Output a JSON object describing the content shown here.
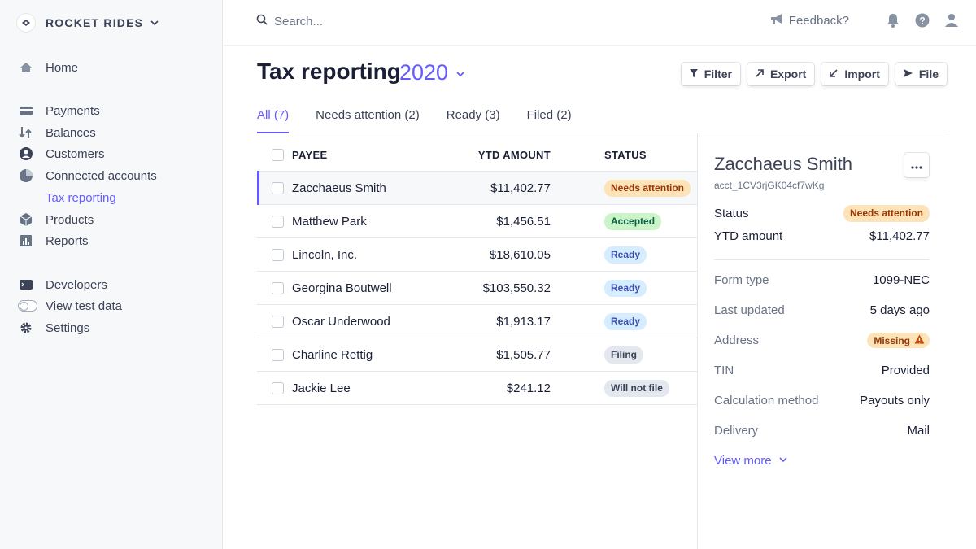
{
  "brand": {
    "name": "ROCKET RIDES"
  },
  "sidebar": {
    "items": [
      {
        "label": "Home",
        "icon": "home-icon"
      },
      {
        "label": "Payments",
        "icon": "payments-icon"
      },
      {
        "label": "Balances",
        "icon": "balances-icon"
      },
      {
        "label": "Customers",
        "icon": "customers-icon"
      },
      {
        "label": "Connected accounts",
        "icon": "connected-accounts-icon"
      },
      {
        "label": "Tax reporting"
      },
      {
        "label": "Products",
        "icon": "products-icon"
      },
      {
        "label": "Reports",
        "icon": "reports-icon"
      },
      {
        "label": "Developers",
        "icon": "developers-icon"
      },
      {
        "label": "View test data",
        "icon": "toggle-icon"
      },
      {
        "label": "Settings",
        "icon": "gear-icon"
      }
    ]
  },
  "topbar": {
    "search_placeholder": "Search...",
    "feedback_label": "Feedback?"
  },
  "header": {
    "title": "Tax reporting",
    "year": "2020",
    "actions": [
      "Filter",
      "Export",
      "Import",
      "File"
    ]
  },
  "tabs": [
    "All (7)",
    "Needs attention (2)",
    "Ready (3)",
    "Filed (2)"
  ],
  "table": {
    "columns": [
      "PAYEE",
      "YTD AMOUNT",
      "STATUS"
    ],
    "rows": [
      {
        "payee": "Zacchaeus Smith",
        "amount": "$11,402.77",
        "status": "Needs attention"
      },
      {
        "payee": "Matthew Park",
        "amount": "$1,456.51",
        "status": "Accepted"
      },
      {
        "payee": "Lincoln, Inc.",
        "amount": "$18,610.05",
        "status": "Ready"
      },
      {
        "payee": "Georgina Boutwell",
        "amount": "$103,550.32",
        "status": "Ready"
      },
      {
        "payee": "Oscar Underwood",
        "amount": "$1,913.17",
        "status": "Ready"
      },
      {
        "payee": "Charline Rettig",
        "amount": "$1,505.77",
        "status": "Filing"
      },
      {
        "payee": "Jackie Lee",
        "amount": "$241.12",
        "status": "Will not file"
      }
    ]
  },
  "detail": {
    "name": "Zacchaeus Smith",
    "account_id": "acct_1CV3rjGK04cf7wKg",
    "status_label": "Status",
    "status": "Needs attention",
    "ytd_label": "YTD amount",
    "ytd": "$11,402.77",
    "fields": [
      {
        "label": "Form type",
        "value": "1099-NEC"
      },
      {
        "label": "Last updated",
        "value": "5 days ago"
      },
      {
        "label": "Address",
        "value": "Missing"
      },
      {
        "label": "TIN",
        "value": "Provided"
      },
      {
        "label": "Calculation method",
        "value": "Payouts only"
      },
      {
        "label": "Delivery",
        "value": "Mail"
      }
    ],
    "view_more": "View more"
  },
  "colors": {
    "accent": "#635bff",
    "attention_bg": "#fce3b8",
    "accepted_bg": "#cbf4c9",
    "ready_bg": "#d6ecff",
    "neutral_bg": "#e3e8ee"
  }
}
